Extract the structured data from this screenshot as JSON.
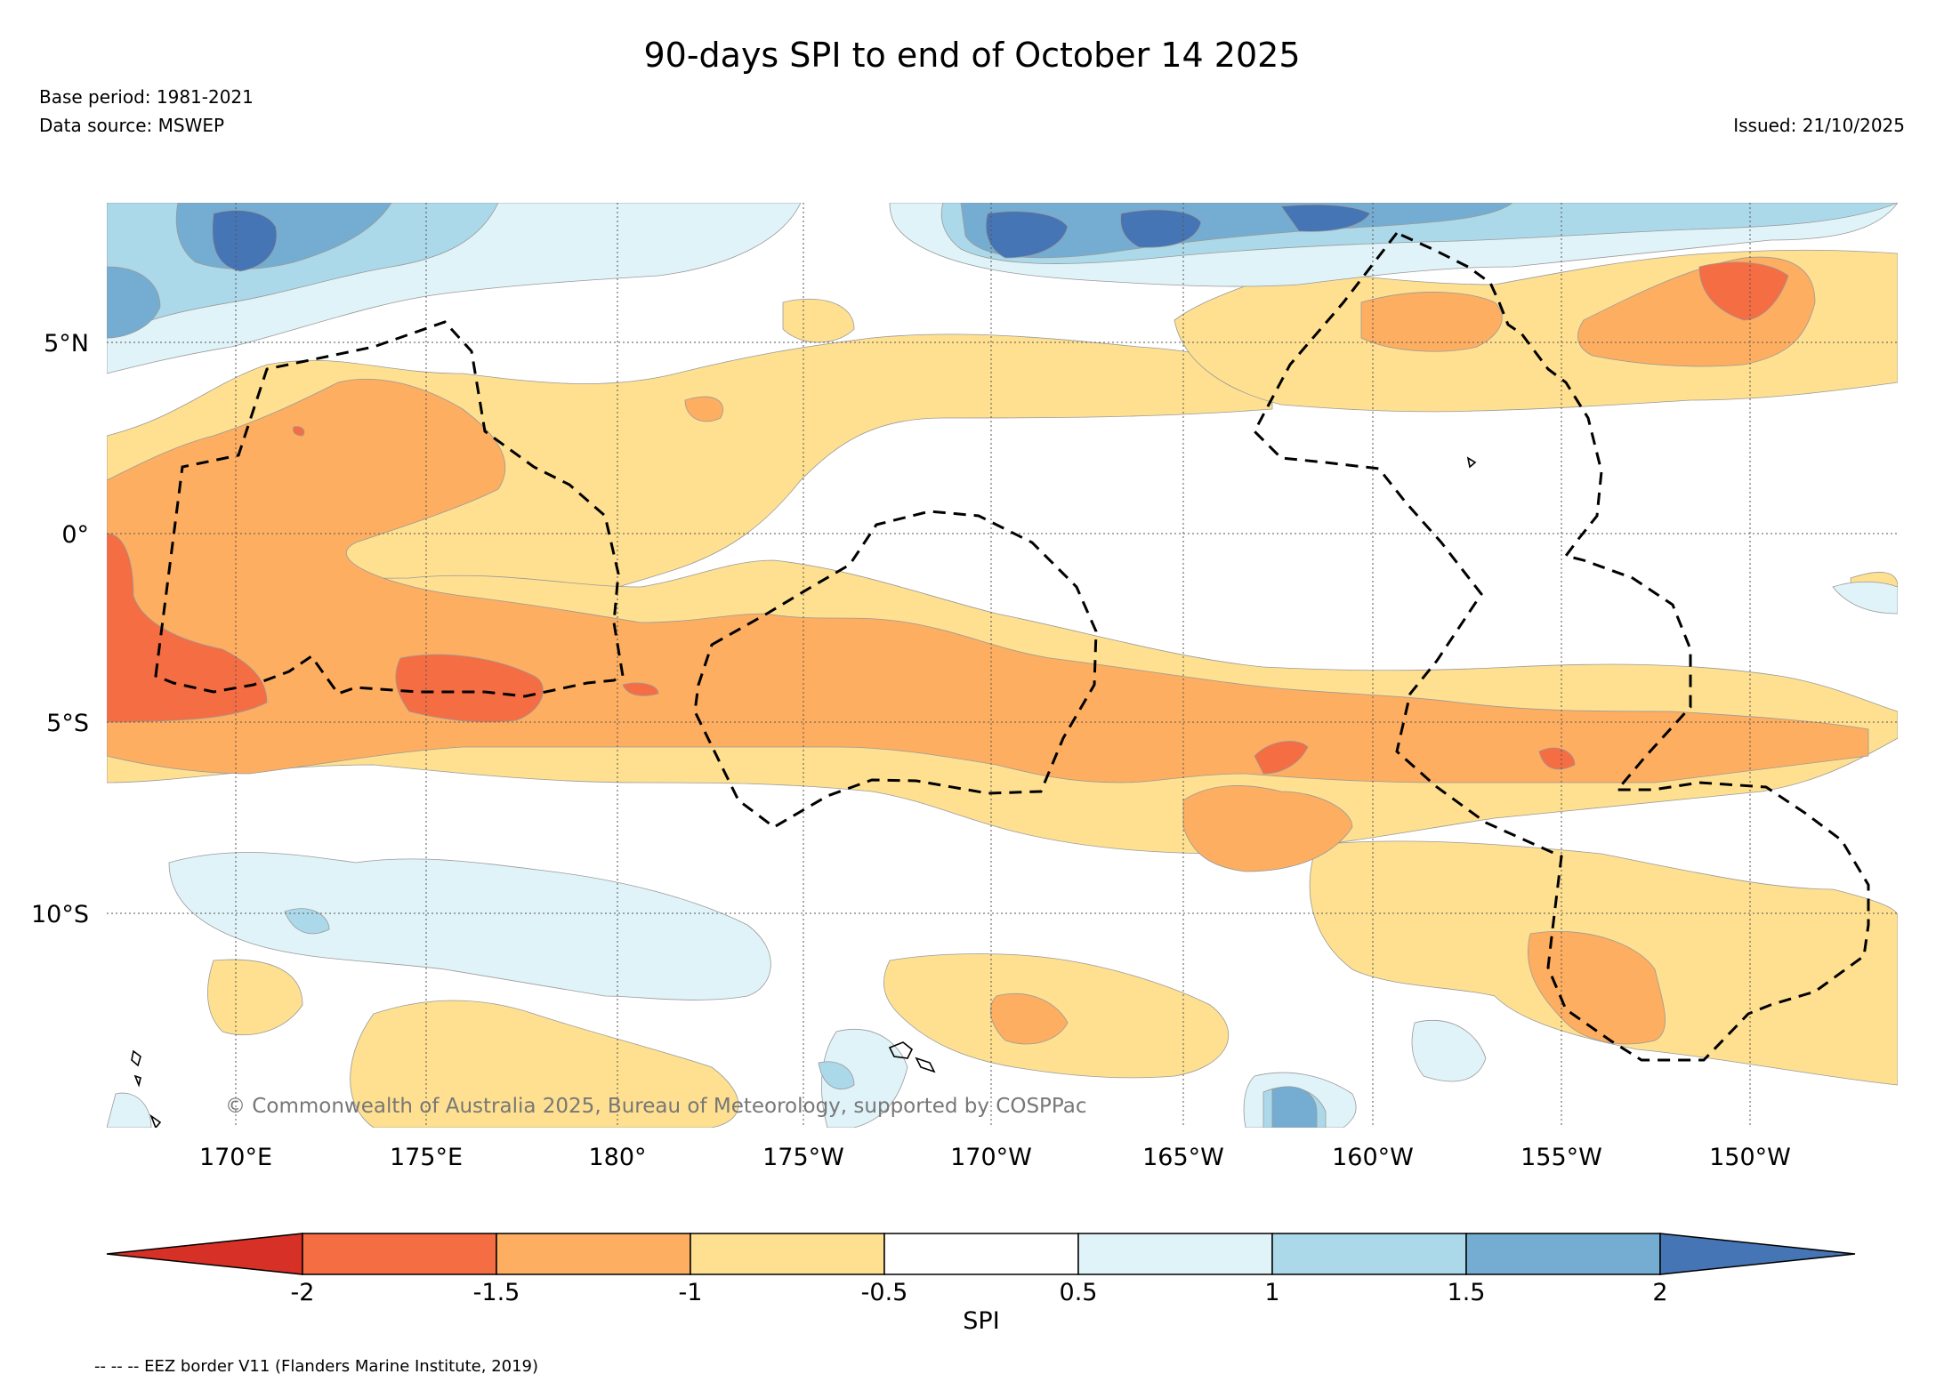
{
  "title": "90-days SPI to end of October 14 2025",
  "base_period": "Base period: 1981-2021",
  "data_source": "Data source: MSWEP",
  "issued": "Issued: 21/10/2025",
  "copyright": "© Commonwealth of Australia 2025, Bureau of Meteorology, supported by COSPPac",
  "footnote": "-- -- -- EEZ border V11 (Flanders Marine Institute, 2019)",
  "map": {
    "lat_labels": [
      "5°N",
      "0°",
      "5°S",
      "10°S"
    ],
    "lon_labels": [
      "170°E",
      "175°E",
      "180°",
      "175°W",
      "170°W",
      "165°W",
      "160°W",
      "155°W",
      "150°W"
    ]
  },
  "colorbar": {
    "label": "SPI",
    "ticks": [
      "-2",
      "-1.5",
      "-1",
      "-0.5",
      "0.5",
      "1",
      "1.5",
      "2"
    ],
    "classes": [
      {
        "range": "< -2",
        "color": "#d73027"
      },
      {
        "range": "-2 to -1.5",
        "color": "#f46d43"
      },
      {
        "range": "-1.5 to -1",
        "color": "#fdae61"
      },
      {
        "range": "-1 to -0.5",
        "color": "#fee090"
      },
      {
        "range": "-0.5 to 0.5",
        "color": "#ffffff"
      },
      {
        "range": "0.5 to 1",
        "color": "#e0f3f8"
      },
      {
        "range": "1 to 1.5",
        "color": "#abd9e9"
      },
      {
        "range": "1.5 to 2",
        "color": "#74add1"
      },
      {
        "range": "> 2",
        "color": "#4575b4"
      }
    ]
  }
}
